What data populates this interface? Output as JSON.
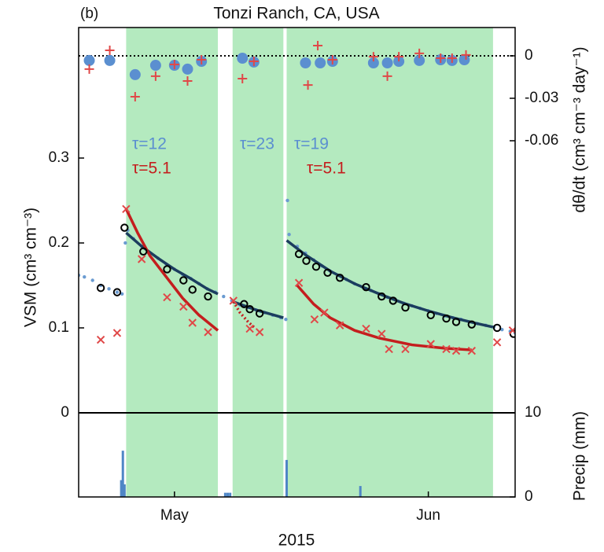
{
  "chart_data": {
    "type": "composite",
    "panel_label": "(b)",
    "title": "Tonzi Ranch, CA, USA",
    "xlabel": "2015",
    "xlim": [
      109.3,
      162.6
    ],
    "xticks": [
      {
        "value": 121,
        "label": "May"
      },
      {
        "value": 152,
        "label": "Jun"
      }
    ],
    "ylabel": "VSM (cm³ cm⁻³)",
    "ylim": [
      -0.0991,
      0.4537
    ],
    "yticks": [
      0,
      0.1,
      0.2,
      0.3
    ],
    "y2label": "dθ/dt (cm³ cm⁻³ day⁻¹)",
    "y2lim": [
      -0.3117,
      0.02
    ],
    "y2ticks": [
      0,
      -0.03,
      -0.06
    ],
    "y3label": "Precip (mm)",
    "y3lim": [
      0,
      55.8
    ],
    "y3ticks": [
      0,
      10
    ],
    "shaded_periods": {
      "color": "#b4eabf",
      "spans": [
        [
          115.1,
          126.3
        ],
        [
          128.1,
          134.3
        ],
        [
          134.7,
          159.9
        ]
      ]
    },
    "hlines": [
      {
        "axis": "y",
        "value": 0,
        "style": "solid"
      },
      {
        "axis": "y2",
        "value": 0,
        "style": "dotted"
      }
    ],
    "series": [
      {
        "kind": "dots",
        "axis": "y",
        "color": "#6a9bd1",
        "x": [
          109.3,
          110,
          111,
          112,
          113,
          114,
          114.6,
          115,
          115.3,
          116,
          117,
          118,
          119,
          120,
          121,
          122,
          123,
          124,
          125,
          126,
          127,
          128,
          129,
          130,
          131,
          132,
          133,
          134,
          134.6,
          134.8,
          135,
          136,
          137,
          138,
          139,
          140,
          141,
          142,
          143,
          144,
          145,
          146,
          147,
          148,
          149,
          150,
          151,
          152,
          153,
          154,
          155,
          156,
          157,
          158,
          159,
          160,
          161,
          162,
          162.6
        ],
        "values": [
          0.162,
          0.16,
          0.156,
          0.15,
          0.146,
          0.142,
          0.14,
          0.2,
          0.215,
          0.205,
          0.196,
          0.188,
          0.182,
          0.175,
          0.169,
          0.163,
          0.158,
          0.152,
          0.146,
          0.142,
          0.137,
          0.132,
          0.127,
          0.124,
          0.121,
          0.118,
          0.115,
          0.112,
          0.11,
          0.25,
          0.21,
          0.196,
          0.188,
          0.18,
          0.173,
          0.167,
          0.162,
          0.157,
          0.152,
          0.148,
          0.144,
          0.14,
          0.136,
          0.133,
          0.129,
          0.126,
          0.123,
          0.12,
          0.117,
          0.114,
          0.112,
          0.11,
          0.107,
          0.105,
          0.103,
          0.101,
          0.098,
          0.096,
          0.094
        ]
      },
      {
        "kind": "line",
        "axis": "y",
        "color": "#1b3d5e",
        "x": [
          115.1,
          117,
          119,
          121,
          123,
          125,
          126.3
        ],
        "values": [
          0.212,
          0.196,
          0.182,
          0.169,
          0.158,
          0.146,
          0.14
        ]
      },
      {
        "kind": "line",
        "axis": "y",
        "color": "#1b3d5e",
        "x": [
          128.1,
          131,
          134.3
        ],
        "values": [
          0.131,
          0.121,
          0.112
        ]
      },
      {
        "kind": "line",
        "axis": "y",
        "color": "#1b3d5e",
        "x": [
          134.7,
          137,
          140,
          143,
          146,
          149,
          152,
          155,
          158,
          159.9
        ],
        "values": [
          0.203,
          0.186,
          0.167,
          0.152,
          0.14,
          0.129,
          0.12,
          0.112,
          0.105,
          0.101
        ]
      },
      {
        "kind": "line",
        "axis": "y",
        "color": "#c41e1e",
        "x": [
          115.1,
          116.5,
          118,
          120,
          122,
          124,
          126.3
        ],
        "values": [
          0.24,
          0.212,
          0.185,
          0.16,
          0.135,
          0.115,
          0.097
        ]
      },
      {
        "kind": "dotted",
        "axis": "y",
        "color": "#c41e1e",
        "x": [
          128.2,
          129,
          130,
          130.8
        ],
        "values": [
          0.131,
          0.118,
          0.107,
          0.1
        ]
      },
      {
        "kind": "line",
        "axis": "y",
        "color": "#c41e1e",
        "x": [
          135.9,
          138,
          140,
          143,
          146,
          150,
          154,
          157.3
        ],
        "values": [
          0.151,
          0.128,
          0.112,
          0.097,
          0.088,
          0.08,
          0.076,
          0.074
        ]
      },
      {
        "kind": "circles",
        "axis": "y",
        "color": "#000000",
        "x": [
          112.0,
          114.0,
          114.9,
          117.2,
          120.1,
          122.1,
          123.2,
          125.1,
          129.5,
          130.2,
          131.4,
          136.2,
          137.1,
          138.3,
          139.7,
          141.2,
          144.4,
          146.3,
          147.7,
          149.2,
          152.3,
          154.2,
          155.4,
          157.3,
          160.4,
          162.4
        ],
        "values": [
          0.147,
          0.142,
          0.218,
          0.19,
          0.169,
          0.156,
          0.145,
          0.137,
          0.128,
          0.122,
          0.117,
          0.187,
          0.179,
          0.172,
          0.165,
          0.159,
          0.148,
          0.137,
          0.132,
          0.124,
          0.115,
          0.111,
          0.107,
          0.104,
          0.1,
          0.093
        ]
      },
      {
        "kind": "x",
        "axis": "y",
        "color": "#e04848",
        "x": [
          112.0,
          114.0,
          115.1,
          117.0,
          120.1,
          122.1,
          123.2,
          125.1,
          128.2,
          130.2,
          131.4,
          136.2,
          138.1,
          139.3,
          141.2,
          144.4,
          146.3,
          147.2,
          149.2,
          152.3,
          154.2,
          155.4,
          157.3,
          160.4,
          162.3
        ],
        "values": [
          0.086,
          0.094,
          0.24,
          0.181,
          0.136,
          0.125,
          0.106,
          0.095,
          0.132,
          0.099,
          0.095,
          0.153,
          0.11,
          0.118,
          0.103,
          0.099,
          0.093,
          0.075,
          0.075,
          0.081,
          0.075,
          0.073,
          0.073,
          0.083,
          0.097
        ]
      },
      {
        "kind": "filled",
        "axis": "y2",
        "color": "#5b8fd0",
        "x": [
          110.6,
          113.1,
          116.2,
          118.7,
          121.0,
          122.6,
          124.3,
          129.3,
          130.7,
          137.0,
          138.8,
          140.3,
          145.3,
          147.0,
          148.4,
          150.9,
          153.5,
          154.9,
          156.4
        ],
        "values": [
          -0.0033,
          -0.0033,
          -0.0133,
          -0.0067,
          -0.0067,
          -0.0094,
          -0.0039,
          -0.0017,
          -0.0044,
          -0.005,
          -0.005,
          -0.0039,
          -0.005,
          -0.005,
          -0.0039,
          -0.0033,
          -0.0028,
          -0.0033,
          -0.0028
        ]
      },
      {
        "kind": "plus",
        "axis": "y2",
        "color": "#e04848",
        "x": [
          110.6,
          113.1,
          116.2,
          118.7,
          121.0,
          122.6,
          124.3,
          129.3,
          130.7,
          137.3,
          138.5,
          140.3,
          145.3,
          147.0,
          148.4,
          150.9,
          153.5,
          154.9,
          156.6
        ],
        "values": [
          -0.0094,
          0.0039,
          -0.0289,
          -0.0144,
          -0.0061,
          -0.0178,
          -0.0028,
          -0.0161,
          -0.0039,
          -0.0206,
          0.0072,
          -0.0028,
          -0.0006,
          -0.0144,
          -0.0006,
          0.0017,
          -0.0017,
          -0.0017,
          0.0006
        ]
      },
      {
        "kind": "bars",
        "axis": "y3",
        "color": "#4f86c6",
        "x": [
          114.5,
          114.7,
          114.9,
          127.2,
          127.5,
          127.8,
          134.7,
          143.7
        ],
        "values": [
          2.0,
          5.5,
          1.5,
          0.5,
          0.5,
          0.5,
          4.4,
          1.3
        ]
      }
    ],
    "annotations": [
      {
        "text": "τ=12",
        "color": "#5b8fd0"
      },
      {
        "text": "τ=5.1",
        "color": "#c41e1e"
      },
      {
        "text": "τ=23",
        "color": "#5b8fd0"
      },
      {
        "text": "τ=19",
        "color": "#5b8fd0"
      },
      {
        "text": "τ=5.1",
        "color": "#c41e1e"
      }
    ]
  }
}
